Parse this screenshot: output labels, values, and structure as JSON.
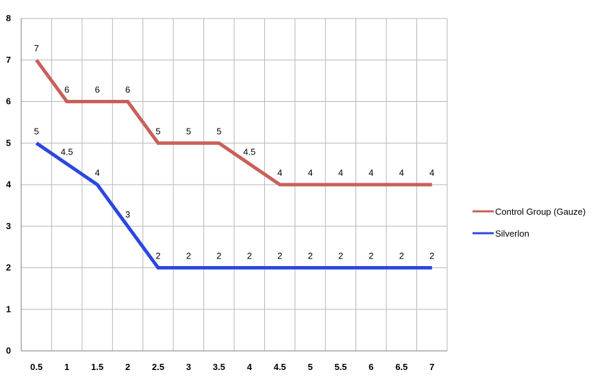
{
  "chart_data": {
    "type": "line",
    "title": "",
    "xlabel": "",
    "ylabel": "",
    "x": [
      "0.5",
      "1",
      "1.5",
      "2",
      "2.5",
      "3",
      "3.5",
      "4",
      "4.5",
      "5",
      "5.5",
      "6",
      "6.5",
      "7"
    ],
    "ylim": [
      0,
      8
    ],
    "yticks": [
      "0",
      "1",
      "2",
      "3",
      "4",
      "5",
      "6",
      "7",
      "8"
    ],
    "grid": true,
    "legend_position": "right",
    "series": [
      {
        "name": "Control Group (Gauze)",
        "color": "#c8605a",
        "values": [
          7,
          6,
          6,
          6,
          5,
          5,
          5,
          4.5,
          4,
          4,
          4,
          4,
          4,
          4
        ],
        "labels": [
          "7",
          "6",
          "6",
          "6",
          "5",
          "5",
          "5",
          "4.5",
          "4",
          "4",
          "4",
          "4",
          "4",
          "4"
        ]
      },
      {
        "name": "Silverlon",
        "color": "#2a48e0",
        "values": [
          5,
          4.5,
          4,
          3,
          2,
          2,
          2,
          2,
          2,
          2,
          2,
          2,
          2,
          2
        ],
        "labels": [
          "5",
          "4.5",
          "4",
          "3",
          "2",
          "2",
          "2",
          "2",
          "2",
          "2",
          "2",
          "2",
          "2",
          "2"
        ]
      }
    ]
  }
}
